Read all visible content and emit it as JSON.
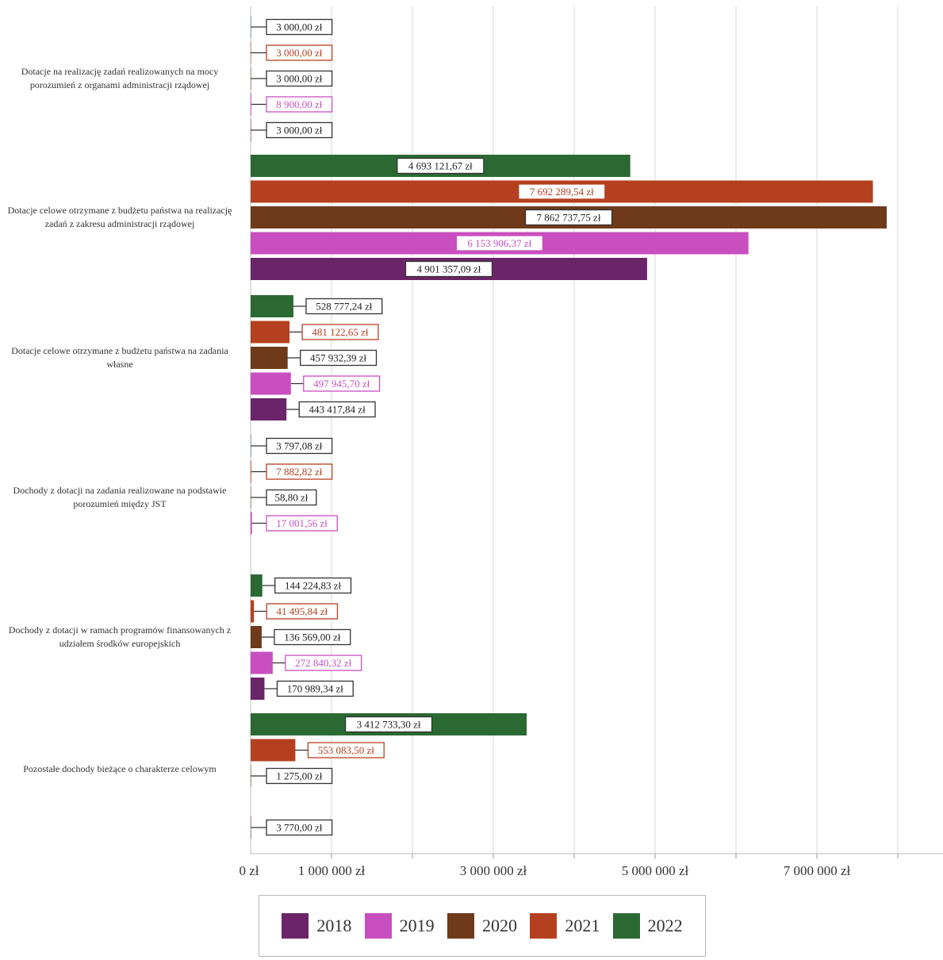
{
  "chart_data": {
    "type": "bar",
    "orientation": "horizontal",
    "categories": [
      "Dotacje na realizację zadań realizowanych na mocy porozumień z organami administracji rządowej",
      "Dotacje celowe otrzymane z budżetu państwa na realizację zadań z zakresu administracji rządowej",
      "Dotacje celowe otrzymane z budżetu państwa na zadania własne",
      "Dochody z dotacji na zadania realizowane na podstawie porozumień między JST",
      "Dochody z dotacji w ramach programów finansowanych z udziałem środków europejskich",
      "Pozostałe dochody bieżące o charakterze celowym"
    ],
    "series": [
      {
        "name": "2018",
        "color": "#6b2467",
        "values": [
          3000.0,
          4901357.09,
          443417.84,
          null,
          170989.34,
          3770.0
        ],
        "labels": [
          "3 000,00 zł",
          "4 901 357,09 zł",
          "443 417,84 zł",
          "",
          "170 989,34 zł",
          "3 770,00 zł"
        ]
      },
      {
        "name": "2019",
        "color": "#c94fc0",
        "values": [
          8900.0,
          6153906.37,
          497945.7,
          17001.56,
          272840.32,
          null
        ],
        "labels": [
          "8 900,00 zł",
          "6 153 906,37 zł",
          "497 945,70 zł",
          "17 001,56 zł",
          "272 840,32 zł",
          ""
        ]
      },
      {
        "name": "2020",
        "color": "#6e3a1a",
        "values": [
          3000.0,
          7862737.75,
          457932.39,
          58.8,
          136569.0,
          1275.0
        ],
        "labels": [
          "3 000,00 zł",
          "7 862 737,75 zł",
          "457 932,39 zł",
          "58,80 zł",
          "136 569,00 zł",
          "1 275,00 zł"
        ]
      },
      {
        "name": "2021",
        "color": "#b5401f",
        "values": [
          3000.0,
          7692289.54,
          481122.65,
          7882.82,
          41495.84,
          553083.5
        ],
        "labels": [
          "3 000,00 zł",
          "7 692 289,54 zł",
          "481 122,65 zł",
          "7 882,82 zł",
          "41 495,84 zł",
          "553 083,50 zł"
        ]
      },
      {
        "name": "2022",
        "color": "#2a6a32",
        "values": [
          3000.0,
          4693121.67,
          528777.24,
          3797.08,
          144224.83,
          3412733.3
        ],
        "labels": [
          "3 000,00 zł",
          "4 693 121,67 zł",
          "528 777,24 zł",
          "3 797,08 zł",
          "144 224,83 zł",
          "3 412 733,30 zł"
        ]
      }
    ],
    "x_ticks": [
      "0 zł",
      "1 000 000 zł",
      "3 000 000 zł",
      "5 000 000 zł",
      "7 000 000 zł"
    ],
    "x_tick_values": [
      0,
      1000000,
      3000000,
      5000000,
      7000000
    ],
    "xlim": [
      0,
      8500000
    ],
    "grid": true,
    "legend_position": "bottom",
    "legend": [
      "2018",
      "2019",
      "2020",
      "2021",
      "2022"
    ]
  }
}
